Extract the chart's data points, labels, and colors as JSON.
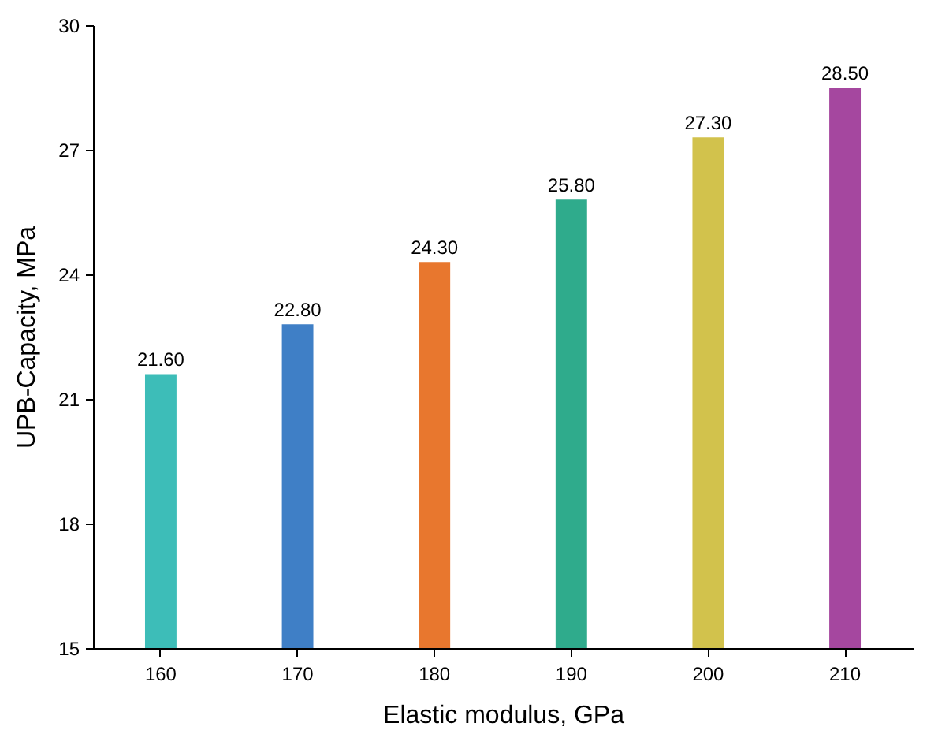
{
  "chart_data": {
    "type": "bar",
    "xlabel": "Elastic modulus, GPa",
    "ylabel": "UPB-Capacity, MPa",
    "categories": [
      "160",
      "170",
      "180",
      "190",
      "200",
      "210"
    ],
    "values": [
      21.6,
      22.8,
      24.3,
      25.8,
      27.3,
      28.5
    ],
    "colors": [
      "#3dbdb8",
      "#3f7fc6",
      "#e8772e",
      "#2fab8c",
      "#d2c24c",
      "#a5479f"
    ],
    "value_labels": [
      "21.60",
      "22.80",
      "24.30",
      "25.80",
      "27.30",
      "28.50"
    ],
    "ylim": [
      15,
      30
    ],
    "yticks": [
      15,
      18,
      21,
      24,
      27,
      30
    ],
    "grid": false
  }
}
